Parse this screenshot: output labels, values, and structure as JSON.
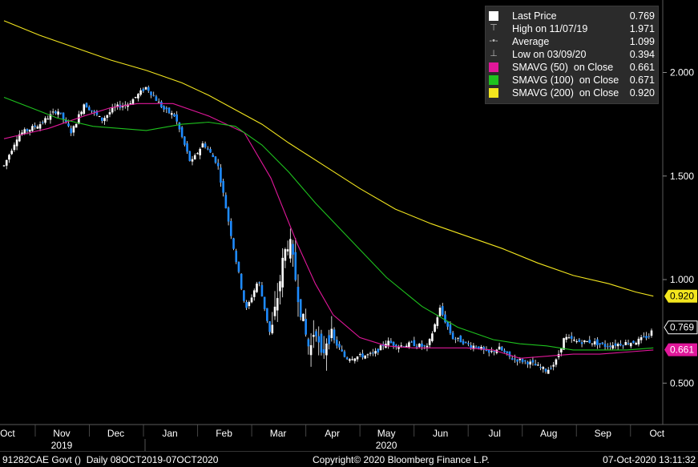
{
  "legend": {
    "items": [
      {
        "label": "Last Price",
        "value": "0.769",
        "symbol": "square",
        "color": "#ffffff"
      },
      {
        "label": "High on 11/07/19",
        "value": "1.971",
        "symbol": "high",
        "color": "#bbbbbb"
      },
      {
        "label": "Average",
        "value": "1.099",
        "symbol": "avg",
        "color": "#bbbbbb"
      },
      {
        "label": "Low on 03/09/20",
        "value": "0.394",
        "symbol": "low",
        "color": "#bbbbbb"
      },
      {
        "label": "SMAVG (50)  on Close",
        "value": "0.661",
        "symbol": "square",
        "color": "#e0179a"
      },
      {
        "label": "SMAVG (100)  on Close",
        "value": "0.671",
        "symbol": "square",
        "color": "#1ec21e"
      },
      {
        "label": "SMAVG (200)  on Close",
        "value": "0.920",
        "symbol": "square",
        "color": "#f3e61e"
      }
    ]
  },
  "tags": [
    {
      "text": "0.920",
      "value": 0.92,
      "bg": "#f3e61e",
      "fg": "#000000"
    },
    {
      "text": "0.769",
      "value": 0.769,
      "bg": "#000000",
      "fg": "#ffffff",
      "border": "#ffffff"
    },
    {
      "text": "0.661",
      "value": 0.661,
      "bg": "#e0179a",
      "fg": "#ffffff"
    }
  ],
  "footer": {
    "left": "91282CAE Govt ()  Daily 08OCT2019-07OCT2020",
    "center": "Copyright© 2020 Bloomberg Finance L.P.",
    "right": "07-Oct-2020 13:11:32"
  },
  "chart_data": {
    "type": "candlestick",
    "ylim": [
      0.3,
      2.35
    ],
    "y_ticks": [
      0.5,
      1.0,
      1.5,
      2.0
    ],
    "y_tick_labels": [
      "0.500",
      "1.000",
      "1.500",
      "2.000"
    ],
    "x_month_labels": [
      "Oct",
      "Nov",
      "Dec",
      "Jan",
      "Feb",
      "Mar",
      "Apr",
      "May",
      "Jun",
      "Jul",
      "Aug",
      "Sep",
      "Oct"
    ],
    "years": [
      {
        "label": "2019",
        "under": "Nov"
      },
      {
        "label": "2020",
        "under": "May"
      }
    ],
    "grid": false,
    "legend_position": "top-right",
    "series": [
      {
        "name": "SMAVG (50)  on Close",
        "color": "#e0179a",
        "x": [
          0,
          10,
          25,
          45,
          60,
          75,
          95,
          115,
          135,
          150,
          165,
          175,
          185,
          200,
          215,
          230,
          245,
          260,
          275,
          290,
          305,
          320,
          335,
          350,
          365
        ],
        "values": [
          1.68,
          1.7,
          1.73,
          1.79,
          1.83,
          1.85,
          1.85,
          1.79,
          1.71,
          1.49,
          1.17,
          0.98,
          0.83,
          0.72,
          0.68,
          0.67,
          0.67,
          0.67,
          0.66,
          0.62,
          0.63,
          0.64,
          0.64,
          0.65,
          0.66
        ]
      },
      {
        "name": "SMAVG (100)  on Close",
        "color": "#1ec21e",
        "x": [
          0,
          15,
          30,
          50,
          65,
          80,
          100,
          115,
          130,
          145,
          160,
          175,
          195,
          215,
          235,
          255,
          275,
          290,
          305,
          320,
          335,
          350,
          365
        ],
        "values": [
          1.88,
          1.83,
          1.78,
          1.74,
          1.73,
          1.72,
          1.75,
          1.76,
          1.74,
          1.65,
          1.52,
          1.37,
          1.19,
          1.01,
          0.87,
          0.77,
          0.71,
          0.69,
          0.68,
          0.66,
          0.66,
          0.66,
          0.67
        ]
      },
      {
        "name": "SMAVG (200)  on Close",
        "color": "#f3e61e",
        "x": [
          0,
          20,
          40,
          60,
          80,
          100,
          115,
          130,
          145,
          160,
          180,
          200,
          220,
          240,
          260,
          280,
          300,
          320,
          340,
          355,
          365
        ],
        "values": [
          2.25,
          2.18,
          2.12,
          2.06,
          2.01,
          1.95,
          1.89,
          1.82,
          1.75,
          1.66,
          1.55,
          1.44,
          1.34,
          1.27,
          1.21,
          1.15,
          1.08,
          1.02,
          0.98,
          0.94,
          0.92
        ]
      }
    ],
    "price_path": {
      "name": "Last Price",
      "x": [
        0,
        8,
        20,
        30,
        38,
        45,
        55,
        62,
        70,
        80,
        90,
        96,
        105,
        112,
        120,
        128,
        136,
        143,
        150,
        157,
        160,
        165,
        169,
        172,
        175,
        178,
        182,
        186,
        192,
        200,
        208,
        215,
        222,
        230,
        238,
        245,
        252,
        258,
        262,
        266,
        272,
        278,
        285,
        295,
        305,
        310,
        315,
        322,
        330,
        338,
        346,
        355,
        363,
        365
      ],
      "values": [
        1.55,
        1.7,
        1.75,
        1.82,
        1.71,
        1.85,
        1.77,
        1.83,
        1.85,
        1.93,
        1.82,
        1.79,
        1.56,
        1.66,
        1.56,
        1.2,
        0.85,
        1.0,
        0.72,
        1.1,
        1.2,
        0.95,
        0.75,
        0.65,
        0.8,
        0.6,
        0.74,
        0.7,
        0.62,
        0.63,
        0.64,
        0.7,
        0.68,
        0.69,
        0.67,
        0.86,
        0.72,
        0.7,
        0.68,
        0.68,
        0.64,
        0.67,
        0.62,
        0.6,
        0.56,
        0.6,
        0.72,
        0.7,
        0.7,
        0.68,
        0.69,
        0.7,
        0.73,
        0.769
      ]
    },
    "high": {
      "label": "High on 11/07/19",
      "value": 1.971
    },
    "low": {
      "label": "Low on 03/09/20",
      "value": 0.394
    },
    "average": 1.099,
    "last": 0.769
  }
}
